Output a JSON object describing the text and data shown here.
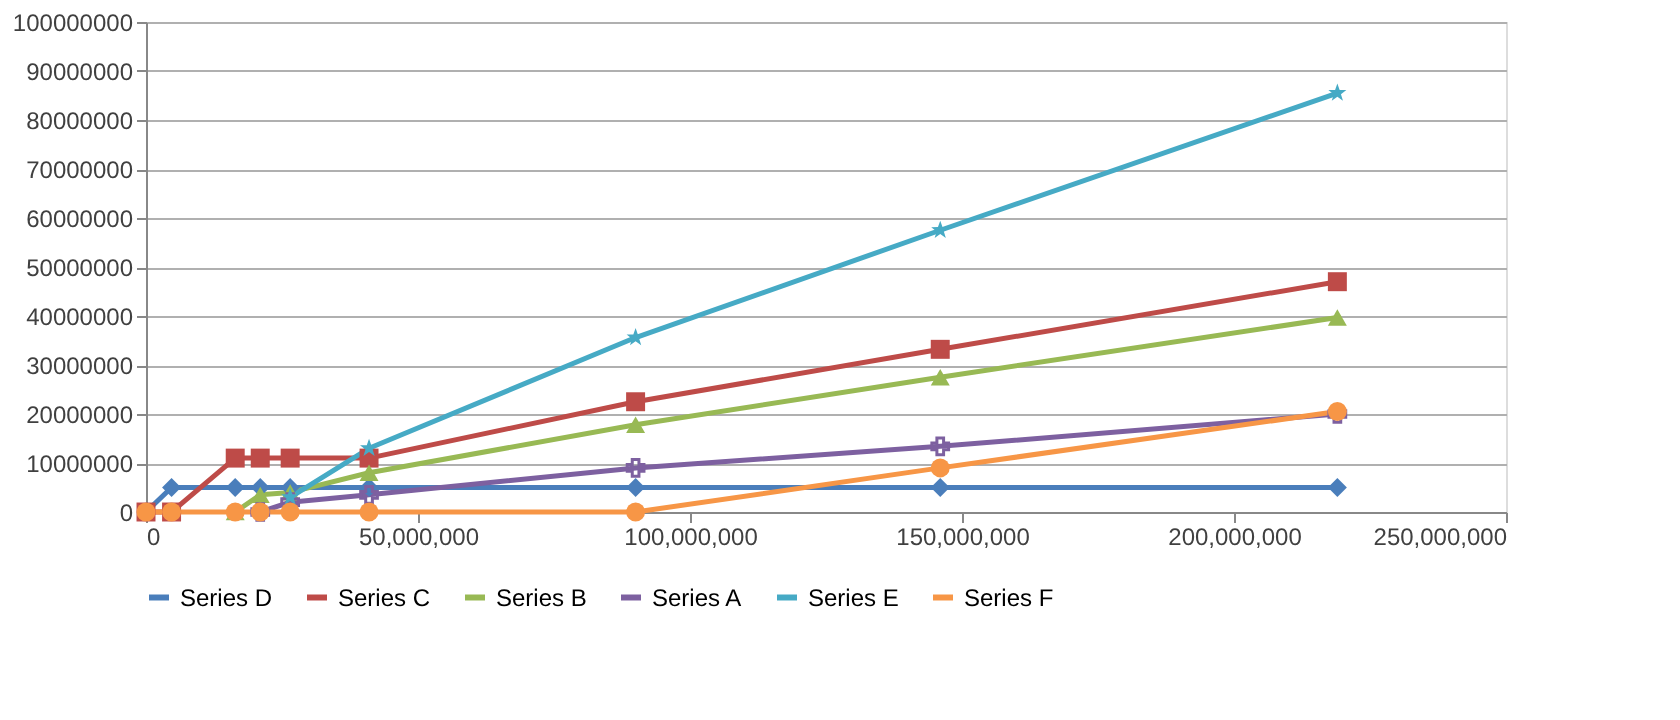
{
  "chart_data": {
    "type": "line",
    "x": [
      0,
      4700000,
      16400000,
      21000000,
      26500000,
      41000000,
      90000000,
      146000000,
      219000000
    ],
    "series": [
      {
        "name": "Series D",
        "color": "#4a7ebb",
        "marker": "diamond",
        "values": [
          0,
          5000000,
          5000000,
          5000000,
          5000000,
          5000000,
          5000000,
          5000000,
          5000000
        ]
      },
      {
        "name": "Series C",
        "color": "#be4b48",
        "marker": "square",
        "values": [
          0,
          0,
          11000000,
          11000000,
          11000000,
          11000000,
          22500000,
          33200000,
          47000000
        ]
      },
      {
        "name": "Series B",
        "color": "#98b954",
        "marker": "triangle",
        "values": [
          null,
          null,
          0,
          3500000,
          4000000,
          8000000,
          17800000,
          27500000,
          39700000
        ]
      },
      {
        "name": "Series A",
        "color": "#7d60a0",
        "marker": "cross",
        "values": [
          null,
          null,
          null,
          0,
          2000000,
          3500000,
          9000000,
          13400000,
          20000000
        ]
      },
      {
        "name": "Series E",
        "color": "#46aac5",
        "marker": "star",
        "values": [
          null,
          null,
          null,
          null,
          3000000,
          13000000,
          35600000,
          57500000,
          85500000
        ]
      },
      {
        "name": "Series F",
        "color": "#f79646",
        "marker": "circle",
        "values": [
          0,
          0,
          0,
          0,
          0,
          0,
          0,
          9000000,
          20500000
        ]
      }
    ],
    "xlim": [
      0,
      250000000
    ],
    "xticks": [
      {
        "value": 0,
        "label": "0"
      },
      {
        "value": 50000000,
        "label": "50,000,000"
      },
      {
        "value": 100000000,
        "label": "100,000,000"
      },
      {
        "value": 150000000,
        "label": "150,000,000"
      },
      {
        "value": 200000000,
        "label": "200,000,000"
      },
      {
        "value": 250000000,
        "label": "250,000,000"
      }
    ],
    "ylim": [
      0,
      100000000
    ],
    "yticks": [
      0,
      10000000,
      20000000,
      30000000,
      40000000,
      50000000,
      60000000,
      70000000,
      80000000,
      90000000,
      100000000
    ],
    "grid": "y",
    "legend": "bottom"
  }
}
